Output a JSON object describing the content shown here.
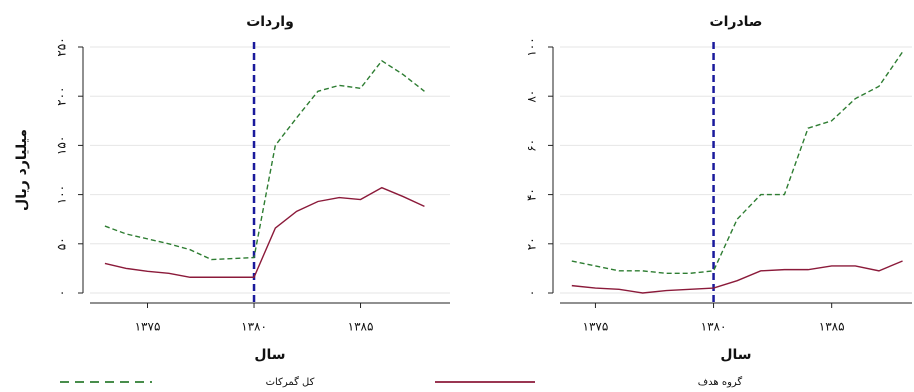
{
  "chart_data": [
    {
      "type": "line",
      "title": "واردات",
      "xlabel": "سال",
      "ylabel": "میلیارد ریال",
      "x": [
        1373,
        1374,
        1375,
        1376,
        1377,
        1378,
        1379,
        1380,
        1381,
        1382,
        1383,
        1384,
        1385,
        1386,
        1387,
        1388
      ],
      "xlim": [
        1372.3,
        1389.2
      ],
      "xticks": [
        {
          "value": 1375,
          "label": "۱۳۷۵"
        },
        {
          "value": 1380,
          "label": "۱۳۸۰"
        },
        {
          "value": 1385,
          "label": "۱۳۸۵"
        }
      ],
      "ylim": [
        0,
        250
      ],
      "yticks": [
        {
          "value": 0,
          "label": "۰"
        },
        {
          "value": 50,
          "label": "۵۰"
        },
        {
          "value": 100,
          "label": "۱۰۰"
        },
        {
          "value": 150,
          "label": "۱۵۰"
        },
        {
          "value": 200,
          "label": "۲۰۰"
        },
        {
          "value": 250,
          "label": "۲۵۰"
        }
      ],
      "grid": true,
      "vline": 1380,
      "vline_color": "#1a1a9c",
      "series": [
        {
          "name": "کل گمرکات",
          "color": "#2e7d32",
          "dash": true,
          "values": [
            68,
            60,
            55,
            50,
            44,
            34,
            35,
            36,
            150,
            178,
            205,
            211,
            208,
            236,
            222,
            205
          ]
        },
        {
          "name": "گروه هدف",
          "color": "#8b1a3a",
          "dash": false,
          "values": [
            30,
            25,
            22,
            20,
            16,
            16,
            16,
            16,
            66,
            83,
            93,
            97,
            95,
            107,
            98,
            88
          ]
        }
      ]
    },
    {
      "type": "line",
      "title": "صادرات",
      "xlabel": "سال",
      "x": [
        1374,
        1375,
        1376,
        1377,
        1378,
        1379,
        1380,
        1381,
        1382,
        1383,
        1384,
        1385,
        1386,
        1387,
        1388
      ],
      "xlim": [
        1373.5,
        1388.4
      ],
      "xticks": [
        {
          "value": 1375,
          "label": "۱۳۷۵"
        },
        {
          "value": 1380,
          "label": "۱۳۸۰"
        },
        {
          "value": 1385,
          "label": "۱۳۸۵"
        }
      ],
      "ylim": [
        0,
        100
      ],
      "yticks": [
        {
          "value": 0,
          "label": "۰"
        },
        {
          "value": 20,
          "label": "۲۰"
        },
        {
          "value": 40,
          "label": "۴۰"
        },
        {
          "value": 60,
          "label": "۶۰"
        },
        {
          "value": 80,
          "label": "۸۰"
        },
        {
          "value": 100,
          "label": "۱۰۰"
        }
      ],
      "grid": true,
      "vline": 1380,
      "vline_color": "#1a1a9c",
      "series": [
        {
          "name": "کل گمرکات",
          "color": "#2e7d32",
          "dash": true,
          "values": [
            13,
            11,
            9,
            9,
            8,
            8,
            9,
            30,
            40,
            40,
            67,
            70,
            79,
            84,
            98
          ]
        },
        {
          "name": "گروه هدف",
          "color": "#8b1a3a",
          "dash": false,
          "values": [
            3,
            2,
            1.5,
            0,
            1,
            1.5,
            2,
            5,
            9,
            9.5,
            9.5,
            11,
            11,
            9,
            13
          ]
        }
      ]
    }
  ]
}
